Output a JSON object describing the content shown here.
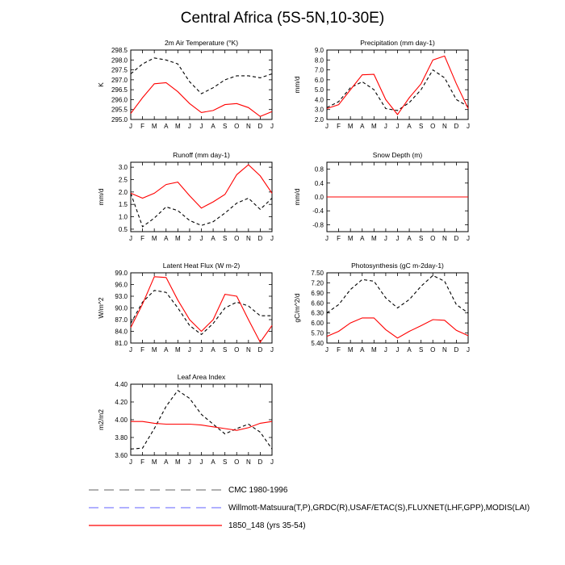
{
  "page": {
    "title": "Central Africa (5S-5N,10-30E)"
  },
  "legend": [
    {
      "label": "CMC 1980-1996",
      "color": "#808080",
      "style": "long-dash"
    },
    {
      "label": "Willmott-Matsuura(T,P),GRDC(R),USAF/ETAC(S),FLUXNET(LHF,GPP),MODIS(LAI)",
      "color": "#8080ff",
      "style": "long-dash"
    },
    {
      "label": "1850_148 (yrs 35-54)",
      "color": "#ff0000",
      "style": "solid"
    }
  ],
  "chart_data": [
    {
      "type": "line",
      "title": "2m Air Temperature (°K)",
      "ylabel": "K",
      "ylim": [
        295.0,
        298.5
      ],
      "yticks": [
        "295.0",
        "295.5",
        "296.0",
        "296.5",
        "297.0",
        "297.5",
        "298.0",
        "298.5"
      ],
      "categories": [
        "J",
        "F",
        "M",
        "A",
        "M",
        "J",
        "J",
        "A",
        "S",
        "O",
        "N",
        "D",
        "J"
      ],
      "series": [
        {
          "style": "dashed",
          "color": "#000000",
          "values": [
            297.3,
            297.8,
            298.1,
            298.0,
            297.8,
            296.9,
            296.3,
            296.6,
            297.0,
            297.2,
            297.2,
            297.1,
            297.3
          ]
        },
        {
          "style": "solid",
          "color": "#ff0000",
          "values": [
            295.3,
            296.1,
            296.8,
            296.85,
            296.4,
            295.8,
            295.35,
            295.45,
            295.75,
            295.8,
            295.6,
            295.15,
            295.4
          ]
        }
      ]
    },
    {
      "type": "line",
      "title": "Precipitation (mm day-1)",
      "ylabel": "mm/d",
      "ylim": [
        2.0,
        9.0
      ],
      "yticks": [
        "2.0",
        "3.0",
        "4.0",
        "5.0",
        "6.0",
        "7.0",
        "8.0",
        "9.0"
      ],
      "categories": [
        "J",
        "F",
        "M",
        "A",
        "M",
        "J",
        "J",
        "A",
        "S",
        "O",
        "N",
        "D",
        "J"
      ],
      "series": [
        {
          "style": "dashed",
          "color": "#000000",
          "values": [
            3.2,
            3.8,
            5.2,
            5.8,
            5.0,
            3.1,
            2.9,
            3.7,
            5.0,
            7.0,
            6.2,
            4.0,
            3.3
          ]
        },
        {
          "style": "solid",
          "color": "#ff0000",
          "values": [
            3.1,
            3.5,
            5.0,
            6.5,
            6.55,
            4.0,
            2.5,
            4.2,
            5.6,
            8.0,
            8.4,
            5.6,
            3.1
          ]
        }
      ]
    },
    {
      "type": "line",
      "title": "Runoff (mm day-1)",
      "ylabel": "mm/d",
      "ylim": [
        0.4,
        3.2
      ],
      "yticks": [
        "0.5",
        "1.0",
        "1.5",
        "2.0",
        "2.5",
        "3.0"
      ],
      "categories": [
        "J",
        "F",
        "M",
        "A",
        "M",
        "J",
        "J",
        "A",
        "S",
        "O",
        "N",
        "D",
        "J"
      ],
      "series": [
        {
          "style": "dashed",
          "color": "#000000",
          "values": [
            1.95,
            0.6,
            0.95,
            1.4,
            1.25,
            0.85,
            0.65,
            0.8,
            1.15,
            1.55,
            1.75,
            1.3,
            1.75
          ]
        },
        {
          "style": "solid",
          "color": "#ff0000",
          "values": [
            1.95,
            1.75,
            1.95,
            2.3,
            2.4,
            1.85,
            1.35,
            1.6,
            1.9,
            2.7,
            3.1,
            2.65,
            1.95
          ]
        }
      ]
    },
    {
      "type": "line",
      "title": "Snow Depth (m)",
      "ylabel": "mm/d",
      "ylim": [
        -1.0,
        1.0
      ],
      "yticks": [
        "-0.8",
        "-0.4",
        "0.0",
        "0.4",
        "0.8"
      ],
      "categories": [
        "J",
        "F",
        "M",
        "A",
        "M",
        "J",
        "J",
        "A",
        "S",
        "O",
        "N",
        "D",
        "J"
      ],
      "series": [
        {
          "style": "dashed",
          "color": "#000000",
          "values": [
            0,
            0,
            0,
            0,
            0,
            0,
            0,
            0,
            0,
            0,
            0,
            0,
            0
          ]
        },
        {
          "style": "solid",
          "color": "#ff0000",
          "values": [
            0,
            0,
            0,
            0,
            0,
            0,
            0,
            0,
            0,
            0,
            0,
            0,
            0
          ]
        }
      ]
    },
    {
      "type": "line",
      "title": "Latent Heat Flux (W m-2)",
      "ylabel": "W/m^2",
      "ylim": [
        81.0,
        99.0
      ],
      "yticks": [
        "81.0",
        "84.0",
        "87.0",
        "90.0",
        "93.0",
        "96.0",
        "99.0"
      ],
      "categories": [
        "J",
        "F",
        "M",
        "A",
        "M",
        "J",
        "J",
        "A",
        "S",
        "O",
        "N",
        "D",
        "J"
      ],
      "series": [
        {
          "style": "dashed",
          "color": "#000000",
          "values": [
            86.0,
            91.5,
            94.5,
            94.0,
            90.0,
            85.5,
            83.2,
            86.0,
            90.0,
            91.5,
            90.5,
            88.0,
            88.0
          ]
        },
        {
          "style": "solid",
          "color": "#ff0000",
          "values": [
            85.0,
            91.0,
            98.0,
            97.8,
            92.0,
            87.0,
            84.0,
            87.0,
            93.5,
            93.0,
            87.0,
            81.2,
            85.5
          ]
        }
      ]
    },
    {
      "type": "line",
      "title": "Photosynthesis (gC m-2day-1)",
      "ylabel": "gC/m^2/d",
      "ylim": [
        5.4,
        7.5
      ],
      "yticks": [
        "5.40",
        "5.70",
        "6.00",
        "6.30",
        "6.60",
        "6.90",
        "7.20",
        "7.50"
      ],
      "categories": [
        "J",
        "F",
        "M",
        "A",
        "M",
        "J",
        "J",
        "A",
        "S",
        "O",
        "N",
        "D",
        "J"
      ],
      "series": [
        {
          "style": "dashed",
          "color": "#000000",
          "values": [
            6.3,
            6.55,
            7.0,
            7.3,
            7.25,
            6.75,
            6.45,
            6.7,
            7.1,
            7.42,
            7.25,
            6.55,
            6.3
          ]
        },
        {
          "style": "solid",
          "color": "#ff0000",
          "values": [
            5.6,
            5.75,
            6.0,
            6.15,
            6.15,
            5.8,
            5.55,
            5.75,
            5.92,
            6.1,
            6.08,
            5.78,
            5.62
          ]
        }
      ]
    },
    {
      "type": "line",
      "title": "Leaf Area Index",
      "ylabel": "m2/m2",
      "ylim": [
        3.6,
        4.4
      ],
      "yticks": [
        "3.60",
        "3.80",
        "4.00",
        "4.20",
        "4.40"
      ],
      "categories": [
        "J",
        "F",
        "M",
        "A",
        "M",
        "J",
        "J",
        "A",
        "S",
        "O",
        "N",
        "D",
        "J"
      ],
      "series": [
        {
          "style": "dashed",
          "color": "#000000",
          "values": [
            3.67,
            3.68,
            3.9,
            4.15,
            4.33,
            4.24,
            4.06,
            3.95,
            3.84,
            3.9,
            3.95,
            3.86,
            3.67
          ]
        },
        {
          "style": "solid",
          "color": "#ff0000",
          "values": [
            3.98,
            3.98,
            3.96,
            3.95,
            3.95,
            3.95,
            3.94,
            3.92,
            3.9,
            3.88,
            3.91,
            3.96,
            3.98
          ]
        }
      ]
    }
  ]
}
